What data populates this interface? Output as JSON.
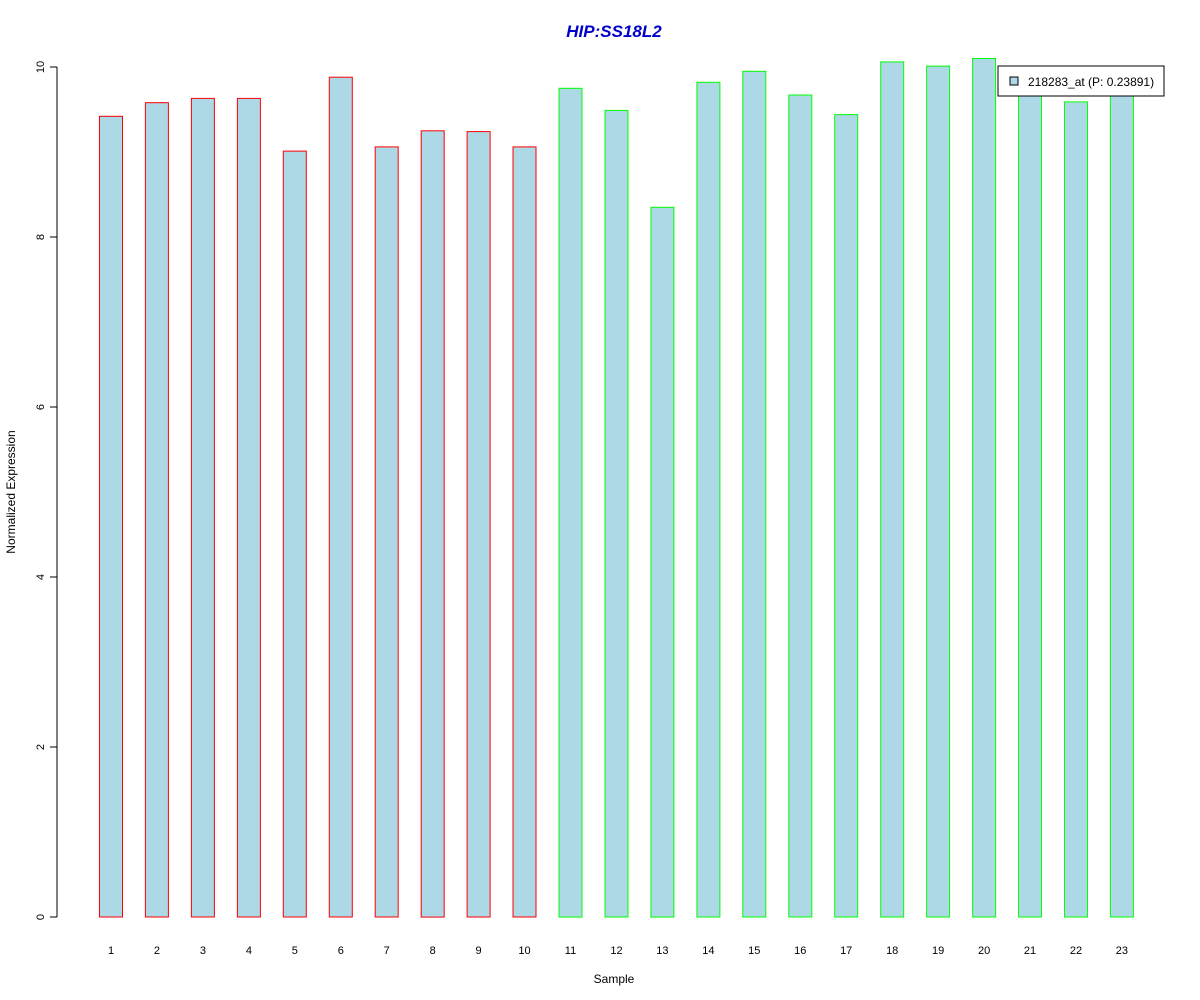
{
  "chart_data": {
    "type": "bar",
    "title": "HIP:SS18L2",
    "xlabel": "Sample",
    "ylabel": "Normalized Expression",
    "categories": [
      "1",
      "2",
      "3",
      "4",
      "5",
      "6",
      "7",
      "8",
      "9",
      "10",
      "11",
      "12",
      "13",
      "14",
      "15",
      "16",
      "17",
      "18",
      "19",
      "20",
      "21",
      "22",
      "23"
    ],
    "values": [
      9.42,
      9.58,
      9.63,
      9.63,
      9.01,
      9.88,
      9.06,
      9.25,
      9.24,
      9.06,
      9.75,
      9.49,
      8.35,
      9.82,
      9.95,
      9.67,
      9.44,
      10.06,
      10.01,
      10.1,
      9.73,
      9.59,
      9.76
    ],
    "groups": [
      "red",
      "red",
      "red",
      "red",
      "red",
      "red",
      "red",
      "red",
      "red",
      "red",
      "green",
      "green",
      "green",
      "green",
      "green",
      "green",
      "green",
      "green",
      "green",
      "green",
      "green",
      "green",
      "green"
    ],
    "yticks": [
      0,
      2,
      4,
      6,
      8,
      10
    ],
    "ylim": [
      0,
      10.1
    ],
    "legend": {
      "label": "218283_at (P: 0.23891)",
      "placement": "top-right"
    },
    "colors": {
      "bar_fill": "#add8e6",
      "group_border_red": "#ff0000",
      "group_border_green": "#00ff00",
      "title": "#0000cc"
    },
    "grid": false
  }
}
